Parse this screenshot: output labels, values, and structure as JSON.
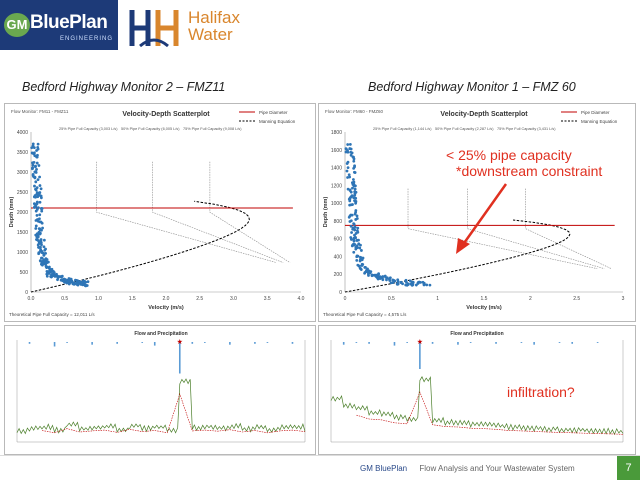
{
  "logos": {
    "blueplan_mark": "GM",
    "blueplan_name": "BluePlan",
    "blueplan_sub": "ENGINEERING",
    "halifax_line1": "Halifax",
    "halifax_line2": "Water"
  },
  "slide": {
    "title_left": "Bedford Highway Monitor 2 – FMZ11",
    "title_right": "Bedford Highway Monitor 1 – FMZ 60",
    "annotation_main": "< 25% pipe capacity",
    "annotation_sub": "*downstream constraint",
    "annotation_infiltration": "infiltration?",
    "footer_brand": "GM BluePlan",
    "footer_text": "Flow Analysis and Your Wastewater System",
    "page_number": "7"
  },
  "colors": {
    "brand_blue": "#1d3a78",
    "halifax_orange": "#d9862d",
    "scatter_blue": "#2e75b6",
    "pipe_red": "#c00000",
    "flow_green": "#4b7f2a",
    "rain_blue": "#5b9bd5",
    "annotation_red": "#e03020",
    "page_green": "#4a9a3a"
  },
  "chart_data": [
    {
      "type": "scatter",
      "panel": "top-left",
      "title": "Velocity-Depth Scatterplot",
      "corner_label": "Flow Monitor: FM11 - FMZ11",
      "xlabel": "Velocity (m/s)",
      "ylabel": "Depth (mm)",
      "xlim": [
        0,
        4.0
      ],
      "ylim": [
        0,
        4000
      ],
      "xticks": [
        "0.0",
        "0.5",
        "1.0",
        "1.5",
        "2.0",
        "2.5",
        "3.0",
        "3.5",
        "4.0"
      ],
      "yticks": [
        "0",
        "500",
        "1000",
        "1500",
        "2000",
        "2500",
        "3000",
        "3500",
        "4000"
      ],
      "pipe_diameter": 2100,
      "capacity_lines": [
        {
          "label": "25% Pipe Full Capacity (3,003 L/s)",
          "x": 0.97
        },
        {
          "label": "50% Pipe Full Capacity (6,005 L/s)",
          "x": 1.8
        },
        {
          "label": "75% Pipe Full Capacity (9,008 L/s)",
          "x": 2.65
        }
      ],
      "legend": [
        "Pipe Diameter",
        "Manning Equation"
      ],
      "footnote": "Theoretical Pipe Full Capacity = 12,011 L/s",
      "points_summary": [
        {
          "velocity": 0.05,
          "depth": 3700
        },
        {
          "velocity": 0.1,
          "depth": 2500
        },
        {
          "velocity": 0.12,
          "depth": 1500
        },
        {
          "velocity": 0.18,
          "depth": 800
        },
        {
          "velocity": 0.3,
          "depth": 450
        },
        {
          "velocity": 0.6,
          "depth": 250
        },
        {
          "velocity": 0.85,
          "depth": 200
        }
      ]
    },
    {
      "type": "scatter",
      "panel": "top-right",
      "title": "Velocity-Depth Scatterplot",
      "corner_label": "Flow Monitor: FM60 - FMZ60",
      "xlabel": "Velocity (m/s)",
      "ylabel": "Depth (mm)",
      "xlim": [
        0,
        3.0
      ],
      "ylim": [
        0,
        1800
      ],
      "xticks": [
        "0",
        "0.5",
        "1",
        "1.5",
        "2",
        "2.5",
        "3"
      ],
      "yticks": [
        "0",
        "200",
        "400",
        "600",
        "800",
        "1000",
        "1200",
        "1400",
        "1600",
        "1800"
      ],
      "pipe_diameter": 750,
      "capacity_lines": [
        {
          "label": "25% Pipe Full Capacity (1,144 L/s)",
          "x": 0.68
        },
        {
          "label": "50% Pipe Full Capacity (2,287 L/s)",
          "x": 1.32
        },
        {
          "label": "75% Pipe Full Capacity (3,431 L/s)",
          "x": 1.95
        }
      ],
      "legend": [
        "Pipe Diameter",
        "Manning Equation"
      ],
      "footnote": "Theoretical Pipe Full Capacity = 4,575 L/s",
      "points_summary": [
        {
          "velocity": 0.05,
          "depth": 1650
        },
        {
          "velocity": 0.08,
          "depth": 1100
        },
        {
          "velocity": 0.1,
          "depth": 600
        },
        {
          "velocity": 0.2,
          "depth": 250
        },
        {
          "velocity": 0.5,
          "depth": 120
        },
        {
          "velocity": 0.9,
          "depth": 80
        }
      ]
    },
    {
      "type": "line",
      "panel": "bottom-left",
      "title": "Flow and Precipitation",
      "series": [
        {
          "name": "Flow",
          "values": [
            45,
            55,
            60,
            48,
            70,
            52,
            58,
            62,
            50,
            66,
            54,
            60,
            48,
            250,
            58,
            62,
            56,
            64,
            52,
            60,
            48,
            58,
            62,
            54
          ]
        },
        {
          "name": "Precipitation",
          "values": [
            0,
            2,
            0,
            5,
            1,
            0,
            3,
            0,
            2,
            0,
            1,
            4,
            0,
            35,
            2,
            1,
            0,
            3,
            0,
            2,
            1,
            0,
            2,
            0
          ]
        }
      ],
      "ylim": [
        0,
        400
      ]
    },
    {
      "type": "line",
      "panel": "bottom-right",
      "title": "Flow and Precipitation",
      "series": [
        {
          "name": "Flow",
          "values": [
            180,
            150,
            140,
            120,
            115,
            100,
            95,
            260,
            90,
            80,
            78,
            72,
            70,
            66,
            60,
            58,
            55,
            52,
            50,
            48,
            46,
            44,
            42,
            40
          ]
        },
        {
          "name": "Precipitation",
          "values": [
            0,
            3,
            1,
            2,
            0,
            4,
            1,
            30,
            2,
            0,
            3,
            1,
            0,
            2,
            0,
            1,
            3,
            0,
            1,
            2,
            0,
            1,
            0,
            0
          ]
        }
      ],
      "ylim": [
        0,
        400
      ]
    }
  ]
}
